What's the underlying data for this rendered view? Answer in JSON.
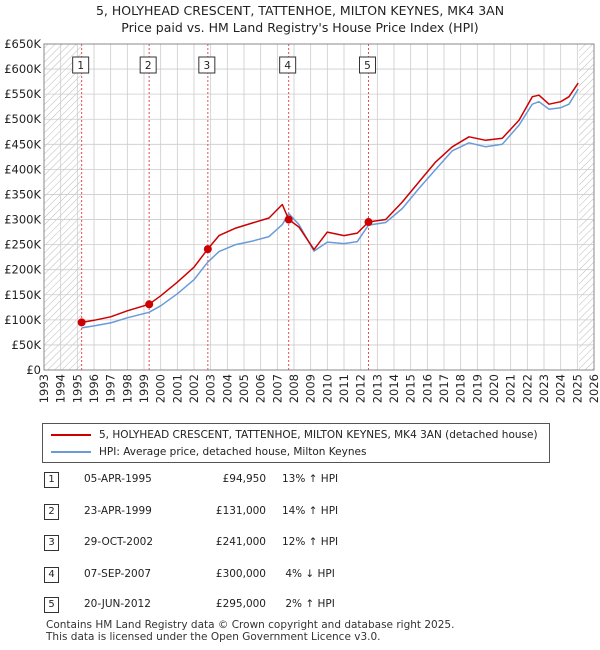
{
  "title": {
    "line1": "5, HOLYHEAD CRESCENT, TATTENHOE, MILTON KEYNES, MK4 3AN",
    "line2": "Price paid vs. HM Land Registry's House Price Index (HPI)"
  },
  "colors": {
    "property_line": "#cc0000",
    "hpi_line": "#6a9bd8",
    "sale_marker": "#cc0000",
    "marker_line": "#e05050",
    "grid": "#cccccc",
    "hatch": "#bbbbbb"
  },
  "legend": {
    "property": "5, HOLYHEAD CRESCENT, TATTENHOE, MILTON KEYNES, MK4 3AN (detached house)",
    "hpi": "HPI: Average price, detached house, Milton Keynes"
  },
  "sales": [
    {
      "num": "1",
      "date": "05-APR-1995",
      "price": "£94,950",
      "hpi": "13% ↑ HPI"
    },
    {
      "num": "2",
      "date": "23-APR-1999",
      "price": "£131,000",
      "hpi": "14% ↑ HPI"
    },
    {
      "num": "3",
      "date": "29-OCT-2002",
      "price": "£241,000",
      "hpi": "12% ↑ HPI"
    },
    {
      "num": "4",
      "date": "07-SEP-2007",
      "price": "£300,000",
      "hpi": " 4% ↓ HPI"
    },
    {
      "num": "5",
      "date": "20-JUN-2012",
      "price": "£295,000",
      "hpi": " 2% ↑ HPI"
    }
  ],
  "footer": {
    "line1": "Contains HM Land Registry data © Crown copyright and database right 2025.",
    "line2": "This data is licensed under the Open Government Licence v3.0."
  },
  "chart_data": {
    "type": "line",
    "xlim": [
      1993,
      2026
    ],
    "ylim": [
      0,
      650000
    ],
    "y_ticks": [
      0,
      50000,
      100000,
      150000,
      200000,
      250000,
      300000,
      350000,
      400000,
      450000,
      500000,
      550000,
      600000,
      650000
    ],
    "y_tick_labels": [
      "£0",
      "£50K",
      "£100K",
      "£150K",
      "£200K",
      "£250K",
      "£300K",
      "£350K",
      "£400K",
      "£450K",
      "£500K",
      "£550K",
      "£600K",
      "£650K"
    ],
    "x_ticks": [
      1993,
      1994,
      1995,
      1996,
      1997,
      1998,
      1999,
      2000,
      2001,
      2002,
      2003,
      2004,
      2005,
      2006,
      2007,
      2008,
      2009,
      2010,
      2011,
      2012,
      2013,
      2014,
      2015,
      2016,
      2017,
      2018,
      2019,
      2020,
      2021,
      2022,
      2023,
      2024,
      2025,
      2026
    ],
    "x_tick_labels": [
      "1993",
      "1994",
      "1995",
      "1996",
      "1997",
      "1998",
      "1999",
      "2000",
      "2001",
      "2002",
      "2003",
      "2004",
      "2005",
      "2006",
      "2007",
      "2008",
      "2009",
      "2010",
      "2011",
      "2012",
      "2013",
      "2014",
      "2015",
      "2016",
      "2017",
      "2018",
      "2019",
      "2020",
      "2021",
      "2022",
      "2023",
      "2024",
      "2025",
      "2026"
    ],
    "hatched_regions": [
      [
        1993,
        1995.26
      ],
      [
        2025.1,
        2026
      ]
    ],
    "grid": true,
    "legend_position": "below",
    "series": [
      {
        "name": "5, HOLYHEAD CRESCENT, TATTENHOE, MILTON KEYNES, MK4 3AN (detached house)",
        "x": [
          1995.26,
          1996.0,
          1997.0,
          1998.0,
          1999.3,
          2000.0,
          2001.0,
          2002.0,
          2002.82,
          2003.5,
          2004.5,
          2005.5,
          2006.5,
          2007.3,
          2007.68,
          2008.3,
          2009.2,
          2010.0,
          2011.0,
          2011.8,
          2012.47,
          2013.5,
          2014.5,
          2015.5,
          2016.5,
          2017.5,
          2018.5,
          2019.5,
          2020.5,
          2021.5,
          2022.3,
          2022.7,
          2023.3,
          2024.0,
          2024.5,
          2025.05
        ],
        "y": [
          94950,
          99000,
          106000,
          118000,
          131000,
          148000,
          175000,
          205000,
          241000,
          268000,
          283000,
          293000,
          303000,
          330000,
          300000,
          285000,
          240000,
          275000,
          268000,
          273000,
          295000,
          300000,
          335000,
          375000,
          415000,
          445000,
          465000,
          458000,
          462000,
          498000,
          545000,
          548000,
          530000,
          535000,
          545000,
          572000
        ]
      },
      {
        "name": "HPI: Average price, detached house, Milton Keynes",
        "x": [
          1995.26,
          1996.0,
          1997.0,
          1998.0,
          1999.3,
          2000.0,
          2001.0,
          2002.0,
          2002.82,
          2003.5,
          2004.5,
          2005.5,
          2006.5,
          2007.3,
          2007.68,
          2008.3,
          2009.2,
          2010.0,
          2011.0,
          2011.8,
          2012.47,
          2013.5,
          2014.5,
          2015.5,
          2016.5,
          2017.5,
          2018.5,
          2019.5,
          2020.5,
          2021.5,
          2022.3,
          2022.7,
          2023.3,
          2024.0,
          2024.5,
          2025.05
        ],
        "y": [
          84000,
          88000,
          94000,
          104000,
          115000,
          128000,
          152000,
          180000,
          215000,
          236000,
          250000,
          257000,
          266000,
          290000,
          312000,
          290000,
          237000,
          255000,
          252000,
          256000,
          289000,
          294000,
          322000,
          362000,
          400000,
          437000,
          453000,
          445000,
          450000,
          488000,
          530000,
          535000,
          520000,
          523000,
          530000,
          560000
        ]
      }
    ],
    "sale_markers": [
      {
        "label": "1",
        "x": 1995.26,
        "y": 94950
      },
      {
        "label": "2",
        "x": 1999.31,
        "y": 131000
      },
      {
        "label": "3",
        "x": 2002.83,
        "y": 241000
      },
      {
        "label": "4",
        "x": 2007.68,
        "y": 300000
      },
      {
        "label": "5",
        "x": 2012.47,
        "y": 295000
      }
    ]
  }
}
